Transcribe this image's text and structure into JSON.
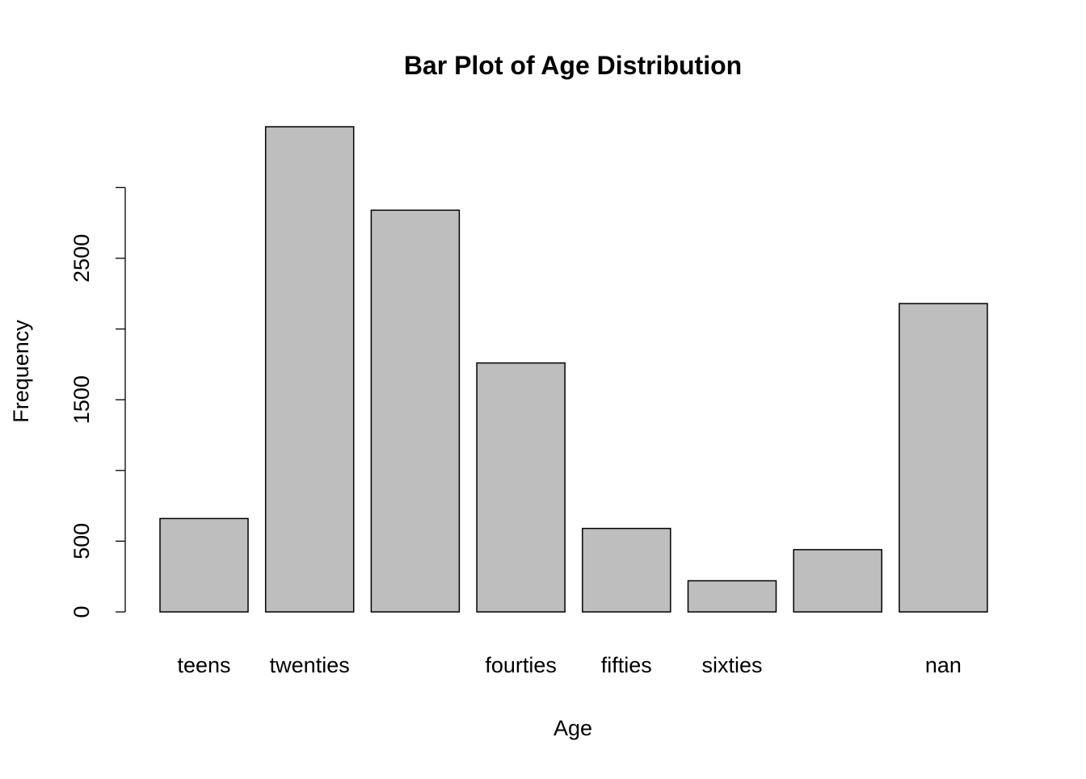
{
  "chart_data": {
    "type": "bar",
    "title": "Bar Plot of Age Distribution",
    "x_label": "Age",
    "y_label": "Frequency",
    "categories": [
      "teens",
      "twenties",
      null,
      "fourties",
      "fifties",
      "sixties",
      null,
      "nan"
    ],
    "values": [
      660,
      3430,
      2840,
      1760,
      590,
      220,
      440,
      2180
    ],
    "color": "#bebebe",
    "ylim": [
      0,
      3430
    ],
    "yticks": [
      0,
      500,
      {
        "value": 1000,
        "label": null
      },
      1500,
      {
        "value": 2000,
        "label": null
      },
      2500,
      {
        "value": 3000,
        "label": null
      }
    ]
  }
}
